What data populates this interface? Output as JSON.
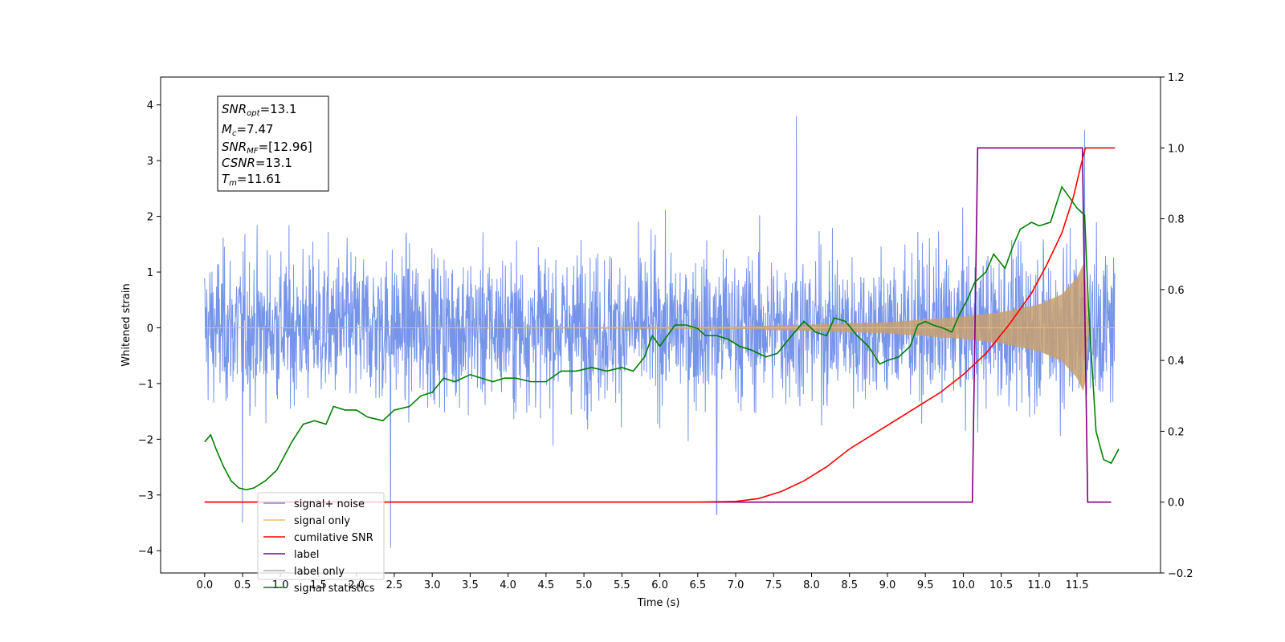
{
  "chart_data": {
    "type": "line",
    "xlabel": "Time (s)",
    "ylabel": "Whitened strain",
    "xlim": [
      -0.58,
      12.6
    ],
    "ylim_left": [
      -4.4,
      4.5
    ],
    "ylim_right": [
      -0.2,
      1.2
    ],
    "x_ticks": [
      "0.0",
      "0.5",
      "1.0",
      "1.5",
      "2.0",
      "2.5",
      "3.0",
      "3.5",
      "4.0",
      "4.5",
      "5.0",
      "5.5",
      "6.0",
      "6.5",
      "7.0",
      "7.5",
      "8.0",
      "8.5",
      "9.0",
      "9.5",
      "10.0",
      "10.5",
      "11.0",
      "11.5"
    ],
    "y_ticks_left": [
      "4",
      "3",
      "2",
      "1",
      "0",
      "−1",
      "−2",
      "−3",
      "−4"
    ],
    "y_ticks_right": [
      "1.2",
      "1.0",
      "0.8",
      "0.6",
      "0.4",
      "0.2",
      "0.0",
      "−0.2"
    ],
    "legend_position": "lower-left",
    "legend": [
      {
        "label": "signal+ noise",
        "color": "#6f8ee8"
      },
      {
        "label": "signal only",
        "color": "#f5b867"
      },
      {
        "label": "cumilative SNR",
        "color": "#ff0000"
      },
      {
        "label": "label",
        "color": "#800080"
      },
      {
        "label": "label only",
        "color": "#aaaaaa"
      },
      {
        "label": "signal statistics",
        "color": "#008000"
      }
    ],
    "annotation": {
      "snr_opt": {
        "base": "SNR",
        "sub": "opt",
        "value": "=13.1"
      },
      "mc": {
        "base": "M",
        "sub": "c",
        "value": "=7.47"
      },
      "snr_mf": {
        "base": "SNR",
        "sub": "MF",
        "value": "=[12.96]"
      },
      "csnr": {
        "base": "CSNR",
        "sub": "",
        "value": "=13.1"
      },
      "tm": {
        "base": "T",
        "sub": "m",
        "value": "=11.61"
      }
    },
    "series": [
      {
        "name": "signal+ noise",
        "axis": "left",
        "t_range": [
          0.0,
          12.0
        ],
        "amplitude_std": 1.05,
        "extremes": [
          {
            "x": 7.8,
            "y": 3.8
          },
          {
            "x": 11.6,
            "y": 3.55
          },
          {
            "x": 2.45,
            "y": -3.95
          },
          {
            "x": 0.5,
            "y": -3.5
          },
          {
            "x": 6.75,
            "y": -3.35
          }
        ]
      },
      {
        "name": "signal only",
        "axis": "left",
        "t_range": [
          0.0,
          12.0
        ],
        "chirp_amplitude": [
          [
            0.0,
            0.0
          ],
          [
            7.0,
            0.02
          ],
          [
            8.0,
            0.06
          ],
          [
            9.0,
            0.1
          ],
          [
            10.0,
            0.2
          ],
          [
            10.5,
            0.28
          ],
          [
            11.0,
            0.42
          ],
          [
            11.3,
            0.6
          ],
          [
            11.5,
            0.9
          ],
          [
            11.6,
            1.2
          ],
          [
            11.65,
            0.0
          ],
          [
            12.0,
            0.0
          ]
        ]
      },
      {
        "name": "cumilative SNR",
        "axis": "right",
        "points": [
          [
            0.0,
            0.0
          ],
          [
            6.5,
            0.0
          ],
          [
            7.0,
            0.002
          ],
          [
            7.3,
            0.01
          ],
          [
            7.6,
            0.03
          ],
          [
            7.9,
            0.06
          ],
          [
            8.2,
            0.1
          ],
          [
            8.5,
            0.15
          ],
          [
            8.8,
            0.19
          ],
          [
            9.1,
            0.23
          ],
          [
            9.4,
            0.27
          ],
          [
            9.7,
            0.31
          ],
          [
            10.0,
            0.36
          ],
          [
            10.3,
            0.42
          ],
          [
            10.6,
            0.5
          ],
          [
            10.9,
            0.59
          ],
          [
            11.1,
            0.67
          ],
          [
            11.3,
            0.76
          ],
          [
            11.45,
            0.86
          ],
          [
            11.55,
            0.95
          ],
          [
            11.61,
            1.0
          ],
          [
            12.0,
            1.0
          ]
        ]
      },
      {
        "name": "label",
        "axis": "right",
        "points": [
          [
            0.0,
            0.0
          ],
          [
            10.12,
            0.0
          ],
          [
            10.19,
            1.0
          ],
          [
            11.57,
            1.0
          ],
          [
            11.64,
            0.0
          ],
          [
            11.95,
            0.0
          ]
        ]
      },
      {
        "name": "signal statistics",
        "axis": "right",
        "points": [
          [
            0.0,
            0.17
          ],
          [
            0.08,
            0.19
          ],
          [
            0.15,
            0.15
          ],
          [
            0.25,
            0.1
          ],
          [
            0.35,
            0.06
          ],
          [
            0.45,
            0.04
          ],
          [
            0.55,
            0.035
          ],
          [
            0.65,
            0.04
          ],
          [
            0.8,
            0.06
          ],
          [
            0.95,
            0.09
          ],
          [
            1.05,
            0.13
          ],
          [
            1.15,
            0.17
          ],
          [
            1.3,
            0.22
          ],
          [
            1.45,
            0.23
          ],
          [
            1.6,
            0.22
          ],
          [
            1.7,
            0.27
          ],
          [
            1.85,
            0.26
          ],
          [
            2.0,
            0.26
          ],
          [
            2.15,
            0.24
          ],
          [
            2.35,
            0.23
          ],
          [
            2.5,
            0.26
          ],
          [
            2.7,
            0.27
          ],
          [
            2.85,
            0.3
          ],
          [
            3.0,
            0.31
          ],
          [
            3.15,
            0.35
          ],
          [
            3.3,
            0.34
          ],
          [
            3.5,
            0.36
          ],
          [
            3.65,
            0.35
          ],
          [
            3.8,
            0.34
          ],
          [
            3.95,
            0.35
          ],
          [
            4.1,
            0.35
          ],
          [
            4.3,
            0.34
          ],
          [
            4.5,
            0.34
          ],
          [
            4.7,
            0.37
          ],
          [
            4.9,
            0.37
          ],
          [
            5.1,
            0.38
          ],
          [
            5.3,
            0.37
          ],
          [
            5.5,
            0.38
          ],
          [
            5.65,
            0.37
          ],
          [
            5.8,
            0.41
          ],
          [
            5.9,
            0.47
          ],
          [
            6.0,
            0.44
          ],
          [
            6.1,
            0.47
          ],
          [
            6.2,
            0.5
          ],
          [
            6.35,
            0.5
          ],
          [
            6.5,
            0.49
          ],
          [
            6.6,
            0.47
          ],
          [
            6.75,
            0.47
          ],
          [
            6.9,
            0.46
          ],
          [
            7.05,
            0.44
          ],
          [
            7.2,
            0.43
          ],
          [
            7.4,
            0.41
          ],
          [
            7.55,
            0.42
          ],
          [
            7.7,
            0.46
          ],
          [
            7.9,
            0.51
          ],
          [
            8.05,
            0.48
          ],
          [
            8.2,
            0.47
          ],
          [
            8.3,
            0.52
          ],
          [
            8.45,
            0.51
          ],
          [
            8.6,
            0.47
          ],
          [
            8.75,
            0.44
          ],
          [
            8.9,
            0.39
          ],
          [
            9.0,
            0.4
          ],
          [
            9.15,
            0.41
          ],
          [
            9.3,
            0.44
          ],
          [
            9.4,
            0.5
          ],
          [
            9.5,
            0.51
          ],
          [
            9.6,
            0.5
          ],
          [
            9.75,
            0.49
          ],
          [
            9.85,
            0.48
          ],
          [
            9.95,
            0.53
          ],
          [
            10.05,
            0.57
          ],
          [
            10.15,
            0.62
          ],
          [
            10.3,
            0.65
          ],
          [
            10.4,
            0.7
          ],
          [
            10.55,
            0.66
          ],
          [
            10.65,
            0.72
          ],
          [
            10.75,
            0.77
          ],
          [
            10.9,
            0.79
          ],
          [
            11.0,
            0.78
          ],
          [
            11.15,
            0.79
          ],
          [
            11.3,
            0.89
          ],
          [
            11.4,
            0.86
          ],
          [
            11.5,
            0.83
          ],
          [
            11.6,
            0.81
          ],
          [
            11.65,
            0.55
          ],
          [
            11.75,
            0.2
          ],
          [
            11.85,
            0.12
          ],
          [
            11.95,
            0.11
          ],
          [
            12.05,
            0.15
          ]
        ]
      }
    ]
  }
}
